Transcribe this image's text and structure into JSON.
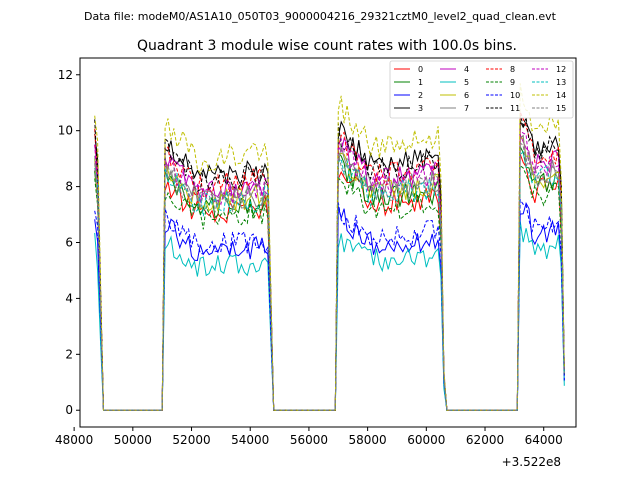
{
  "chart_data": {
    "type": "line",
    "suptitle": "Data file: modeM0/AS1A10_050T03_9000004216_29321cztM0_level2_quad_clean.evt",
    "title": "Quadrant 3 module wise count rates with 100.0s bins.",
    "xlabel": "",
    "ylabel": "",
    "x_offset_label": "+3.522e8",
    "xlim": [
      48200,
      65100
    ],
    "ylim": [
      -0.6,
      12.6
    ],
    "x_ticks": [
      48000,
      50000,
      52000,
      54000,
      56000,
      58000,
      60000,
      62000,
      64000
    ],
    "x_tick_labels": [
      "48000",
      "50000",
      "52000",
      "54000",
      "56000",
      "58000",
      "60000",
      "62000",
      "64000"
    ],
    "y_ticks": [
      0,
      2,
      4,
      6,
      8,
      10,
      12
    ],
    "y_tick_labels": [
      "0",
      "2",
      "4",
      "6",
      "8",
      "10",
      "12"
    ],
    "legend_position": "upper right",
    "on_intervals": [
      [
        48700,
        48950
      ],
      [
        51050,
        54750
      ],
      [
        57000,
        60600
      ],
      [
        63200,
        64700
      ]
    ],
    "series": [
      {
        "name": "0",
        "color": "#ff0000",
        "dash": "solid",
        "level": 7.3
      },
      {
        "name": "1",
        "color": "#008000",
        "dash": "solid",
        "level": 7.5
      },
      {
        "name": "2",
        "color": "#0000ff",
        "dash": "solid",
        "level": 5.9
      },
      {
        "name": "3",
        "color": "#000000",
        "dash": "solid",
        "level": 8.6
      },
      {
        "name": "4",
        "color": "#bf00bf",
        "dash": "solid",
        "level": 8.1
      },
      {
        "name": "5",
        "color": "#00bfbf",
        "dash": "solid",
        "level": 5.3
      },
      {
        "name": "6",
        "color": "#bfbf00",
        "dash": "solid",
        "level": 7.7
      },
      {
        "name": "7",
        "color": "#808080",
        "dash": "solid",
        "level": 7.8
      },
      {
        "name": "8",
        "color": "#ff0000",
        "dash": "dashed",
        "level": 8.3
      },
      {
        "name": "9",
        "color": "#008000",
        "dash": "dashed",
        "level": 7.1
      },
      {
        "name": "10",
        "color": "#0000ff",
        "dash": "dashed",
        "level": 6.1
      },
      {
        "name": "11",
        "color": "#000000",
        "dash": "dashed",
        "level": 8.5
      },
      {
        "name": "12",
        "color": "#bf00bf",
        "dash": "dashed",
        "level": 8.0
      },
      {
        "name": "13",
        "color": "#00bfbf",
        "dash": "dashed",
        "level": 7.6
      },
      {
        "name": "14",
        "color": "#bfbf00",
        "dash": "dashed",
        "level": 9.3
      },
      {
        "name": "15",
        "color": "#808080",
        "dash": "dashed",
        "level": 7.7
      }
    ]
  }
}
